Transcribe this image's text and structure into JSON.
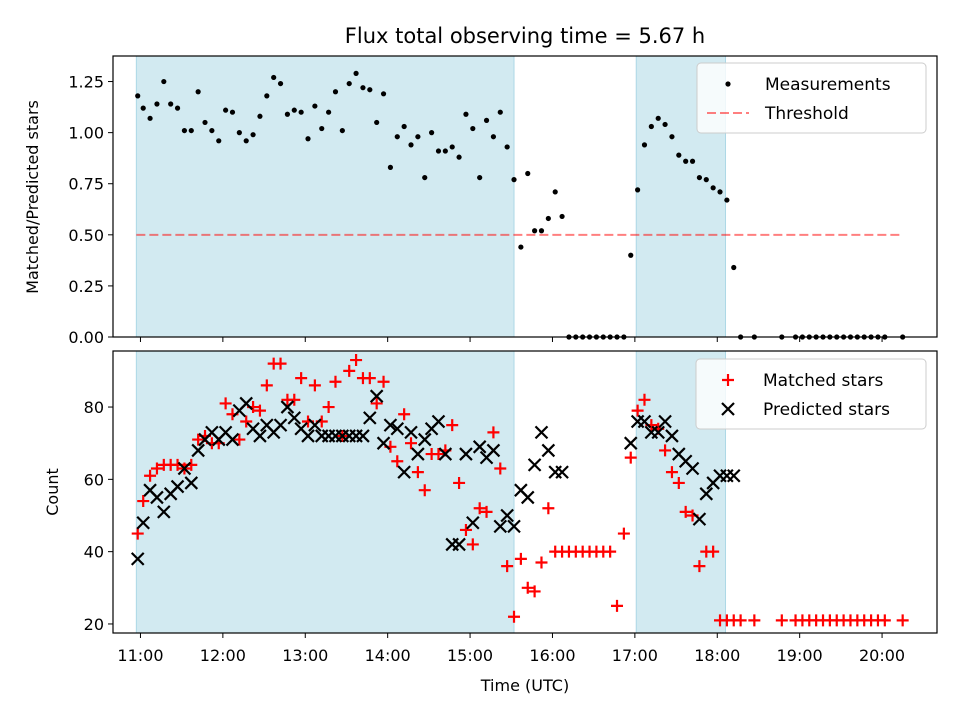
{
  "title": "Flux total observing time = 5.67 h",
  "colors": {
    "shade": "#add8e6",
    "threshold": "#ff0000",
    "measurement": "#000000",
    "matched": "#ff0000",
    "predicted": "#000000"
  },
  "chart_data": [
    {
      "type": "scatter",
      "panel": "top",
      "title": "Flux total observing time = 5.67 h",
      "ylabel": "Matched/Predicted stars",
      "xlabel": "",
      "xlim": [
        "10:40",
        "20:40"
      ],
      "ylim": [
        0,
        1.375
      ],
      "yticks": [
        "0.00",
        "0.25",
        "0.50",
        "0.75",
        "1.00",
        "1.25"
      ],
      "shaded_intervals": [
        [
          "10:57",
          "15:32"
        ],
        [
          "17:01",
          "18:06"
        ]
      ],
      "legend_position": "upper right",
      "grid": false,
      "threshold": {
        "name": "Threshold",
        "y": 0.5,
        "x_start": "10:57",
        "x_end": "20:15",
        "style": "dashed"
      },
      "series": [
        {
          "name": "Measurements",
          "x": [
            "10:58",
            "11:02",
            "11:07",
            "11:12",
            "11:17",
            "11:22",
            "11:27",
            "11:32",
            "11:37",
            "11:42",
            "11:47",
            "11:52",
            "11:57",
            "12:02",
            "12:07",
            "12:12",
            "12:17",
            "12:22",
            "12:27",
            "12:32",
            "12:37",
            "12:42",
            "12:47",
            "12:52",
            "12:57",
            "13:02",
            "13:07",
            "13:12",
            "13:17",
            "13:22",
            "13:27",
            "13:32",
            "13:37",
            "13:42",
            "13:47",
            "13:52",
            "13:57",
            "14:02",
            "14:07",
            "14:12",
            "14:17",
            "14:22",
            "14:27",
            "14:32",
            "14:37",
            "14:42",
            "14:47",
            "14:52",
            "14:57",
            "15:02",
            "15:07",
            "15:12",
            "15:17",
            "15:22",
            "15:27",
            "15:32",
            "15:37",
            "15:42",
            "15:47",
            "15:52",
            "15:57",
            "16:02",
            "16:07",
            "16:12",
            "16:17",
            "16:22",
            "16:27",
            "16:32",
            "16:37",
            "16:42",
            "16:47",
            "16:52",
            "16:57",
            "17:02",
            "17:07",
            "17:12",
            "17:17",
            "17:22",
            "17:27",
            "17:32",
            "17:37",
            "17:42",
            "17:47",
            "17:52",
            "17:57",
            "18:02",
            "18:07",
            "18:12",
            "18:17",
            "18:27",
            "18:47",
            "18:57",
            "19:02",
            "19:07",
            "19:12",
            "19:17",
            "19:22",
            "19:27",
            "19:32",
            "19:37",
            "19:42",
            "19:47",
            "19:52",
            "19:57",
            "20:02",
            "20:15"
          ],
          "y": [
            1.18,
            1.12,
            1.07,
            1.14,
            1.25,
            1.14,
            1.12,
            1.01,
            1.01,
            1.2,
            1.05,
            1.01,
            0.96,
            1.11,
            1.1,
            1.0,
            0.96,
            0.99,
            1.08,
            1.18,
            1.27,
            1.24,
            1.09,
            1.11,
            1.1,
            0.97,
            1.13,
            1.02,
            1.1,
            1.2,
            1.01,
            1.24,
            1.29,
            1.22,
            1.21,
            1.05,
            1.19,
            0.83,
            0.98,
            1.03,
            0.94,
            0.98,
            0.78,
            1.0,
            0.91,
            0.91,
            0.93,
            0.88,
            1.09,
            1.02,
            0.78,
            1.06,
            0.98,
            1.1,
            0.93,
            0.77,
            0.44,
            0.8,
            0.52,
            0.52,
            0.58,
            0.71,
            0.59,
            0.0,
            0.0,
            0.0,
            0.0,
            0.0,
            0.0,
            0.0,
            0.0,
            0.0,
            0.4,
            0.72,
            0.94,
            1.03,
            1.07,
            1.04,
            0.98,
            0.89,
            0.86,
            0.86,
            0.78,
            0.77,
            0.73,
            0.71,
            0.67,
            0.34,
            0.0,
            0.0,
            0.0,
            0.0,
            0.0,
            0.0,
            0.0,
            0.0,
            0.0,
            0.0,
            0.0,
            0.0,
            0.0,
            0.0,
            0.0,
            0.0,
            0.0,
            0.0
          ]
        }
      ]
    },
    {
      "type": "scatter",
      "panel": "bottom",
      "xlabel": "Time (UTC)",
      "ylabel": "Count",
      "xlim": [
        "10:40",
        "20:40"
      ],
      "ylim": [
        17.5,
        95.5
      ],
      "xticks": [
        "11:00",
        "12:00",
        "13:00",
        "14:00",
        "15:00",
        "16:00",
        "17:00",
        "18:00",
        "19:00",
        "20:00"
      ],
      "yticks": [
        "20",
        "40",
        "60",
        "80"
      ],
      "shaded_intervals": [
        [
          "10:57",
          "15:32"
        ],
        [
          "17:01",
          "18:06"
        ]
      ],
      "legend_position": "upper right",
      "grid": false,
      "series": [
        {
          "name": "Matched stars",
          "marker": "+",
          "x": [
            "10:58",
            "11:02",
            "11:07",
            "11:12",
            "11:17",
            "11:22",
            "11:27",
            "11:32",
            "11:37",
            "11:42",
            "11:47",
            "11:52",
            "11:57",
            "12:02",
            "12:07",
            "12:12",
            "12:17",
            "12:22",
            "12:27",
            "12:32",
            "12:37",
            "12:42",
            "12:47",
            "12:52",
            "12:57",
            "13:02",
            "13:07",
            "13:12",
            "13:17",
            "13:22",
            "13:27",
            "13:32",
            "13:37",
            "13:42",
            "13:47",
            "13:52",
            "13:57",
            "14:02",
            "14:07",
            "14:12",
            "14:17",
            "14:22",
            "14:27",
            "14:32",
            "14:37",
            "14:42",
            "14:47",
            "14:52",
            "14:57",
            "15:02",
            "15:07",
            "15:12",
            "15:17",
            "15:22",
            "15:27",
            "15:32",
            "15:37",
            "15:42",
            "15:47",
            "15:52",
            "15:57",
            "16:02",
            "16:07",
            "16:12",
            "16:17",
            "16:22",
            "16:27",
            "16:32",
            "16:37",
            "16:42",
            "16:47",
            "16:52",
            "16:57",
            "17:02",
            "17:07",
            "17:12",
            "17:17",
            "17:22",
            "17:27",
            "17:32",
            "17:37",
            "17:42",
            "17:47",
            "17:52",
            "17:57",
            "18:02",
            "18:07",
            "18:12",
            "18:17",
            "18:27",
            "18:47",
            "18:57",
            "19:02",
            "19:07",
            "19:12",
            "19:17",
            "19:22",
            "19:27",
            "19:32",
            "19:37",
            "19:42",
            "19:47",
            "19:52",
            "19:57",
            "20:02",
            "20:15"
          ],
          "y": [
            45,
            54,
            61,
            63,
            64,
            64,
            64,
            63,
            64,
            71,
            72,
            70,
            70,
            81,
            78,
            71,
            76,
            80,
            79,
            86,
            92,
            92,
            82,
            82,
            88,
            76,
            86,
            76,
            80,
            87,
            72,
            90,
            93,
            88,
            88,
            81,
            87,
            69,
            65,
            78,
            70,
            62,
            57,
            67,
            67,
            68,
            75,
            59,
            46,
            42,
            52,
            51,
            73,
            63,
            36,
            22,
            38,
            30,
            29,
            37,
            52,
            40,
            40,
            40,
            40,
            40,
            40,
            40,
            40,
            40,
            25,
            45,
            66,
            79,
            82,
            75,
            74,
            68,
            62,
            59,
            51,
            50,
            36,
            40,
            40,
            21,
            21,
            21,
            21,
            21,
            21,
            21,
            21,
            21,
            21,
            21,
            21,
            21,
            21,
            21,
            21,
            21,
            21,
            21,
            21,
            21
          ]
        },
        {
          "name": "Predicted stars",
          "marker": "x",
          "x": [
            "10:58",
            "11:02",
            "11:07",
            "11:12",
            "11:17",
            "11:22",
            "11:27",
            "11:32",
            "11:37",
            "11:42",
            "11:47",
            "11:52",
            "11:57",
            "12:02",
            "12:07",
            "12:12",
            "12:17",
            "12:22",
            "12:27",
            "12:32",
            "12:37",
            "12:42",
            "12:47",
            "12:52",
            "12:57",
            "13:02",
            "13:07",
            "13:12",
            "13:17",
            "13:22",
            "13:27",
            "13:32",
            "13:37",
            "13:42",
            "13:47",
            "13:52",
            "13:57",
            "14:02",
            "14:07",
            "14:12",
            "14:17",
            "14:22",
            "14:27",
            "14:32",
            "14:37",
            "14:42",
            "14:47",
            "14:52",
            "14:57",
            "15:02",
            "15:07",
            "15:12",
            "15:17",
            "15:22",
            "15:27",
            "15:32",
            "15:37",
            "15:42",
            "15:47",
            "15:52",
            "15:57",
            "16:02",
            "16:07",
            "16:57",
            "17:02",
            "17:07",
            "17:12",
            "17:17",
            "17:22",
            "17:27",
            "17:32",
            "17:37",
            "17:42",
            "17:47",
            "17:52",
            "17:57",
            "18:02",
            "18:07",
            "18:12"
          ],
          "y": [
            38,
            48,
            57,
            55,
            51,
            56,
            58,
            63,
            59,
            68,
            71,
            73,
            71,
            73,
            71,
            79,
            81,
            74,
            72,
            75,
            73,
            75,
            80,
            77,
            74,
            72,
            75,
            72,
            72,
            72,
            72,
            72,
            72,
            72,
            77,
            83,
            70,
            75,
            74,
            62,
            73,
            67,
            71,
            74,
            76,
            67,
            42,
            42,
            67,
            48,
            69,
            66,
            68,
            47,
            50,
            47,
            57,
            55,
            64,
            73,
            68,
            62,
            62,
            70,
            76,
            76,
            73,
            73,
            76,
            72,
            67,
            65,
            63,
            49,
            56,
            59,
            61,
            61,
            61
          ]
        }
      ]
    }
  ]
}
